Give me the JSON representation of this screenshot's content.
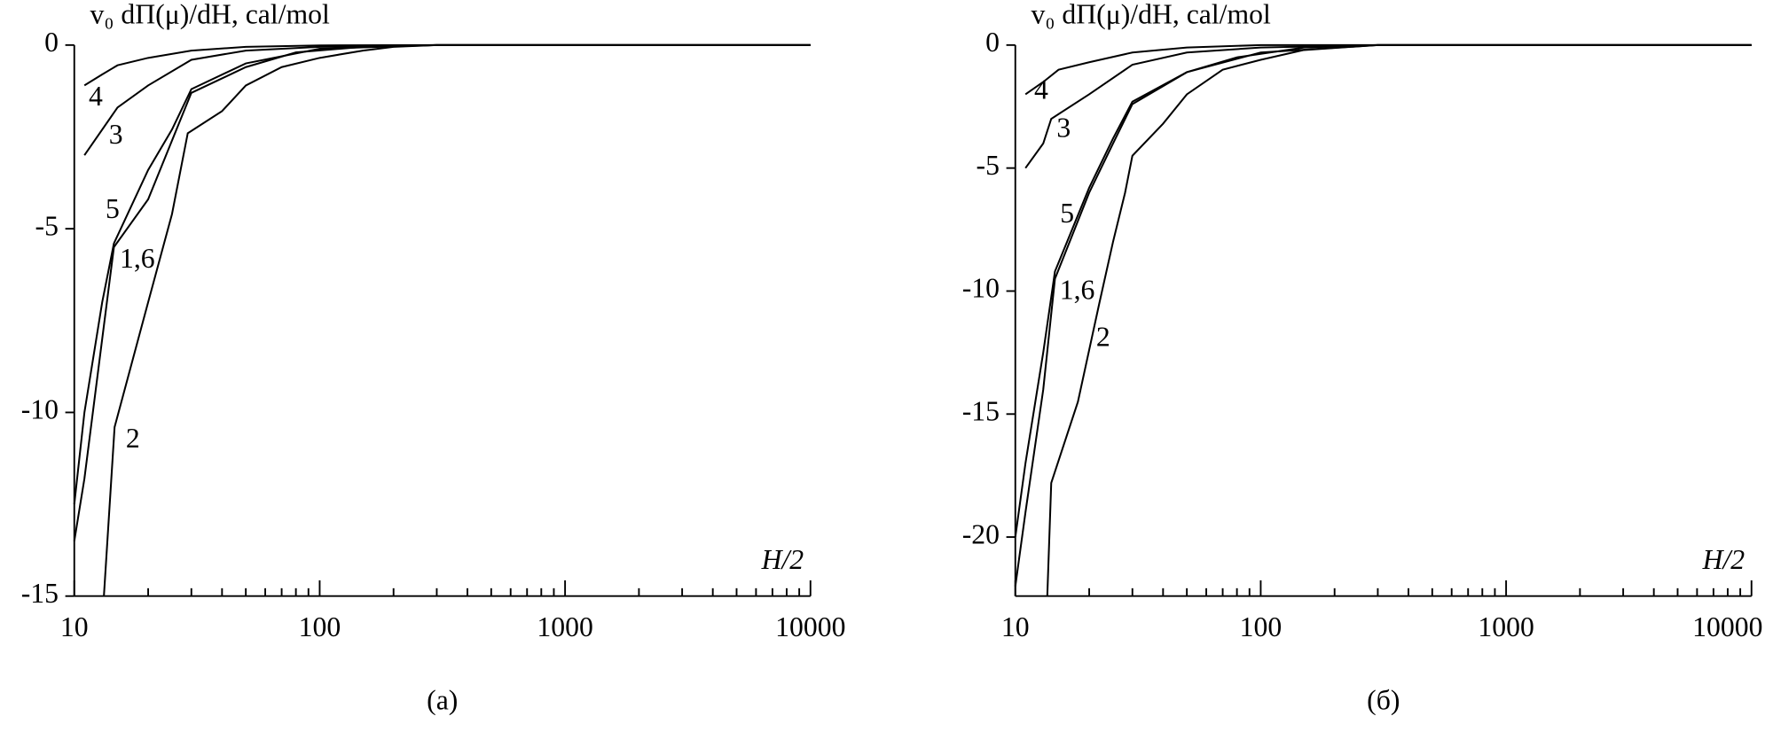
{
  "chart_data": [
    {
      "type": "line",
      "ylabel": "v₀ dΠ(μ)/dH, cal/mol",
      "xlabel": "H/2",
      "caption": "(a)",
      "log_x": true,
      "xlim": [
        10,
        10000
      ],
      "xticks": [
        10,
        100,
        1000,
        10000
      ],
      "ylim": [
        -15,
        0
      ],
      "yticks": [
        0,
        -5,
        -10,
        -15
      ],
      "series": [
        {
          "name": "4",
          "color": "#000000",
          "x": [
            11,
            13,
            15,
            20,
            30,
            50,
            100,
            300,
            10000
          ],
          "values": [
            -1.1,
            -0.8,
            -0.55,
            -0.35,
            -0.15,
            -0.05,
            -0.01,
            0,
            0
          ]
        },
        {
          "name": "3",
          "color": "#000000",
          "x": [
            11,
            15,
            20,
            30,
            50,
            100,
            300,
            10000
          ],
          "values": [
            -3,
            -1.7,
            -1.1,
            -0.4,
            -0.15,
            -0.05,
            0,
            0
          ]
        },
        {
          "name": "5",
          "color": "#000000",
          "x": [
            10,
            11,
            13,
            14.5,
            20,
            25,
            30,
            50,
            100,
            300,
            10000
          ],
          "values": [
            -12.5,
            -10,
            -7,
            -5.4,
            -3.4,
            -2.3,
            -1.2,
            -0.5,
            -0.1,
            0,
            0
          ]
        },
        {
          "name": "1,6",
          "color": "#000000",
          "x": [
            10,
            11,
            13,
            14.5,
            20,
            25,
            30,
            50,
            80,
            150,
            300,
            10000
          ],
          "values": [
            -13.5,
            -11.8,
            -8,
            -5.5,
            -4.2,
            -2.6,
            -1.3,
            -0.6,
            -0.2,
            -0.05,
            0,
            0
          ]
        },
        {
          "name": "2",
          "color": "#000000",
          "x": [
            13.2,
            14.6,
            20,
            25,
            29,
            40,
            50,
            70,
            100,
            150,
            200,
            300,
            10000
          ],
          "values": [
            -15,
            -10.4,
            -7,
            -4.6,
            -2.4,
            -1.8,
            -1.1,
            -0.6,
            -0.35,
            -0.15,
            -0.05,
            0,
            0
          ]
        }
      ]
    },
    {
      "type": "line",
      "ylabel": "v₀ dΠ(μ)/dH, cal/mol",
      "xlabel": "H/2",
      "caption": "(б)",
      "log_x": true,
      "xlim": [
        10,
        10000
      ],
      "xticks": [
        10,
        100,
        1000,
        10000
      ],
      "ylim": [
        -22.4,
        0
      ],
      "yticks": [
        0,
        -5,
        -10,
        -15,
        -20
      ],
      "series": [
        {
          "name": "4",
          "color": "#000000",
          "x": [
            11,
            13,
            15,
            20,
            30,
            50,
            100,
            10000
          ],
          "values": [
            -2,
            -1.5,
            -1,
            -0.7,
            -0.3,
            -0.1,
            0,
            0
          ]
        },
        {
          "name": "3",
          "color": "#000000",
          "x": [
            11,
            13,
            14,
            20,
            30,
            50,
            100,
            300,
            10000
          ],
          "values": [
            -5,
            -4,
            -3,
            -2,
            -0.8,
            -0.3,
            -0.1,
            0,
            0
          ]
        },
        {
          "name": "5",
          "color": "#000000",
          "x": [
            10,
            11,
            13,
            14.5,
            20,
            25,
            30,
            50,
            100,
            300,
            10000
          ],
          "values": [
            -20,
            -17,
            -12.5,
            -9.2,
            -5.8,
            -3.8,
            -2.3,
            -1.1,
            -0.3,
            0,
            0
          ]
        },
        {
          "name": "1,6",
          "color": "#000000",
          "x": [
            10,
            11,
            13,
            14.5,
            20,
            25,
            30,
            50,
            80,
            150,
            300,
            10000
          ],
          "values": [
            -22,
            -19,
            -14,
            -9.5,
            -6,
            -4,
            -2.4,
            -1.1,
            -0.5,
            -0.1,
            0,
            0
          ]
        },
        {
          "name": "2",
          "color": "#000000",
          "x": [
            13.5,
            14,
            18,
            22,
            25,
            28,
            30,
            40,
            50,
            70,
            100,
            150,
            300,
            10000
          ],
          "values": [
            -22.4,
            -17.8,
            -14.5,
            -10.5,
            -8,
            -6,
            -4.5,
            -3.2,
            -2,
            -1,
            -0.6,
            -0.2,
            0,
            0
          ]
        }
      ]
    }
  ]
}
